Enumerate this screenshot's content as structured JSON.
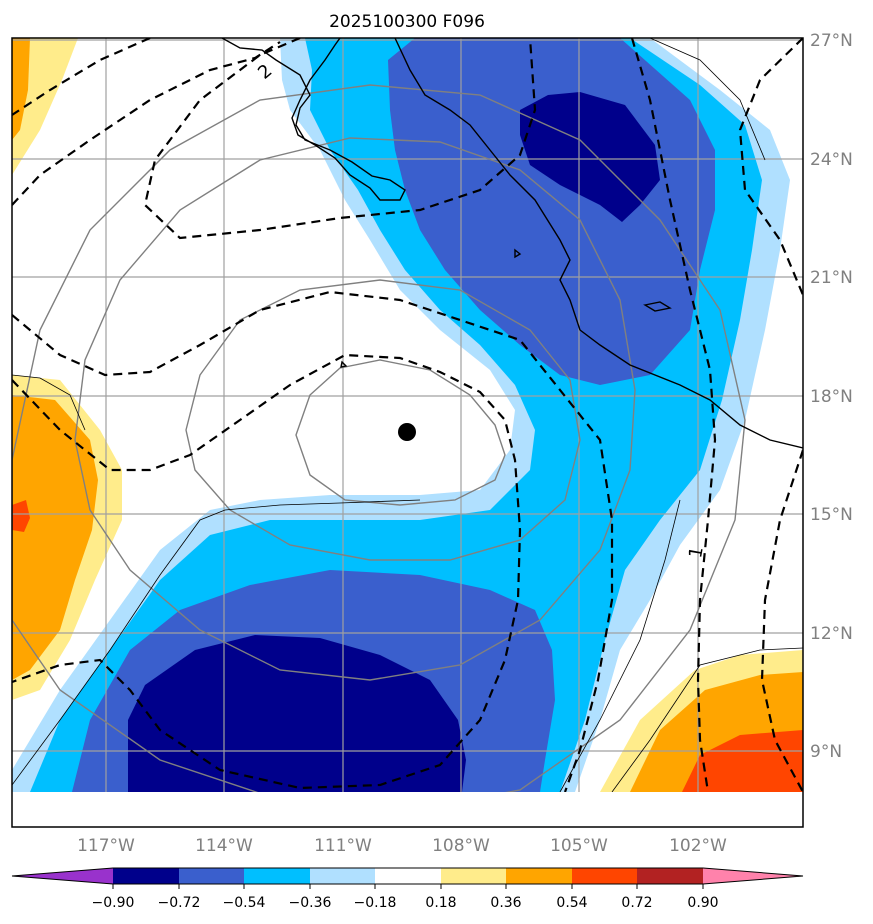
{
  "title": "2025100300 F096",
  "lat_ticks": [
    "27°N",
    "24°N",
    "21°N",
    "18°N",
    "15°N",
    "12°N",
    "9°N"
  ],
  "lon_ticks": [
    "117°W",
    "114°W",
    "111°W",
    "108°W",
    "105°W",
    "102°W"
  ],
  "contour_labels": [
    "2",
    "1"
  ],
  "colorbar": {
    "tick_labels": [
      "−0.90",
      "−0.72",
      "−0.54",
      "−0.36",
      "−0.18",
      "0.18",
      "0.36",
      "0.54",
      "0.72",
      "0.90"
    ],
    "colors": [
      "#9932cc",
      "#00008b",
      "#3a5fcd",
      "#00bfff",
      "#b0e0ff",
      "#ffffff",
      "#ffec8b",
      "#ffa500",
      "#ff4500",
      "#b22222",
      "#ff82ab"
    ]
  },
  "colors": {
    "frame": "#000000",
    "grid": "#a0a0a0",
    "track_circle": "#808080",
    "storm_center": "#000000"
  },
  "storm_center_icon": "storm-center-dot"
}
